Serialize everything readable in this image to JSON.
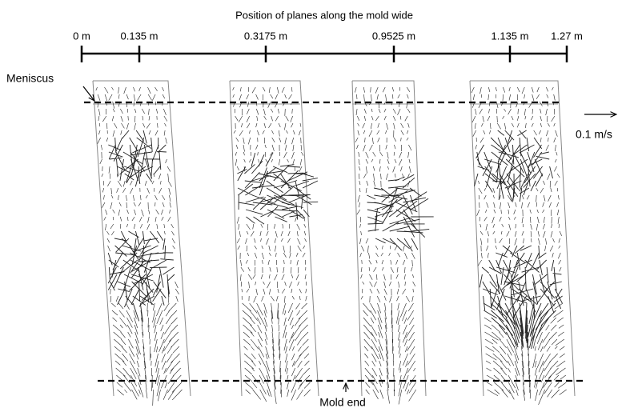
{
  "title": "Position of planes along the mold wide",
  "positions": [
    "0 m",
    "0.135 m",
    "0.3175 m",
    "0.9525 m",
    "1.135 m",
    "1.27 m"
  ],
  "annotations": {
    "meniscus": "Meniscus",
    "mold_end": "Mold end",
    "scale": "0.1 m/s"
  }
}
